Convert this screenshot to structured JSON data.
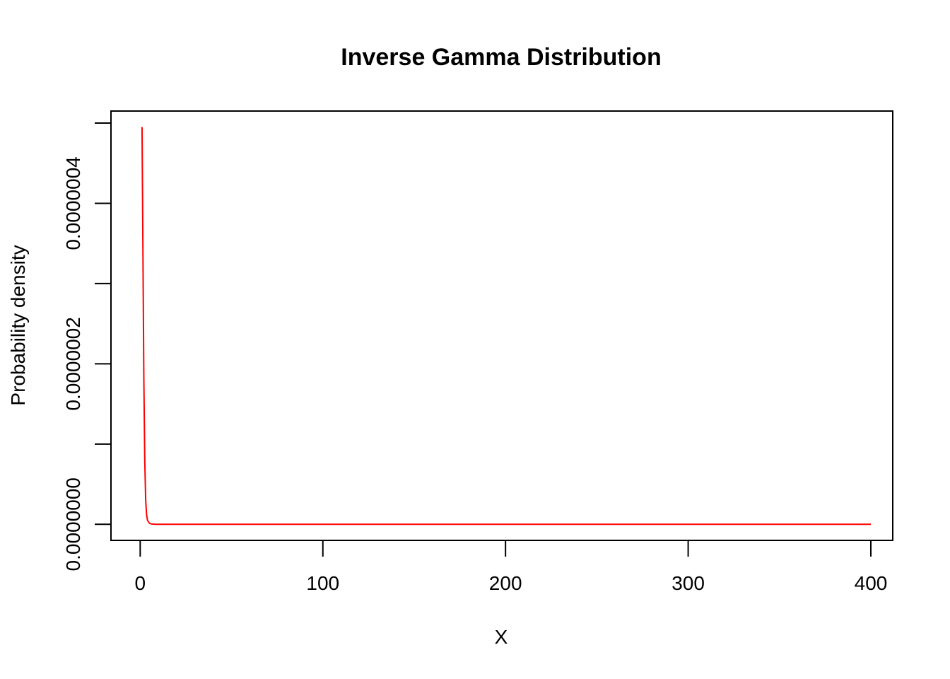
{
  "chart_data": {
    "type": "line",
    "title": "Inverse Gamma Distribution",
    "xlabel": "X",
    "ylabel": "Probability density",
    "xlim": [
      -16,
      412
    ],
    "ylim": [
      -2e-08,
      5.15e-07
    ],
    "x_ticks": [
      {
        "value": 0,
        "label": "0"
      },
      {
        "value": 100,
        "label": "100"
      },
      {
        "value": 200,
        "label": "200"
      },
      {
        "value": 300,
        "label": "300"
      },
      {
        "value": 400,
        "label": "400"
      }
    ],
    "y_ticks": [
      {
        "value": 0,
        "label": "0.0000000"
      },
      {
        "value": 1e-07,
        "label": ""
      },
      {
        "value": 2e-07,
        "label": "0.0000002"
      },
      {
        "value": 3e-07,
        "label": ""
      },
      {
        "value": 4e-07,
        "label": "0.0000004"
      },
      {
        "value": 5e-07,
        "label": ""
      }
    ],
    "grid": false,
    "series": [
      {
        "color": "#ff0000",
        "x": [
          1,
          1.5,
          2,
          2.5,
          3,
          3.5,
          4,
          5,
          6,
          8,
          10,
          50,
          100,
          200,
          300,
          400
        ],
        "y": [
          4.95e-07,
          3.4e-07,
          1.8e-07,
          8e-08,
          3e-08,
          1.2e-08,
          5e-09,
          1.5e-09,
          5e-10,
          1e-10,
          0,
          0,
          0,
          0,
          0,
          0
        ]
      }
    ]
  }
}
